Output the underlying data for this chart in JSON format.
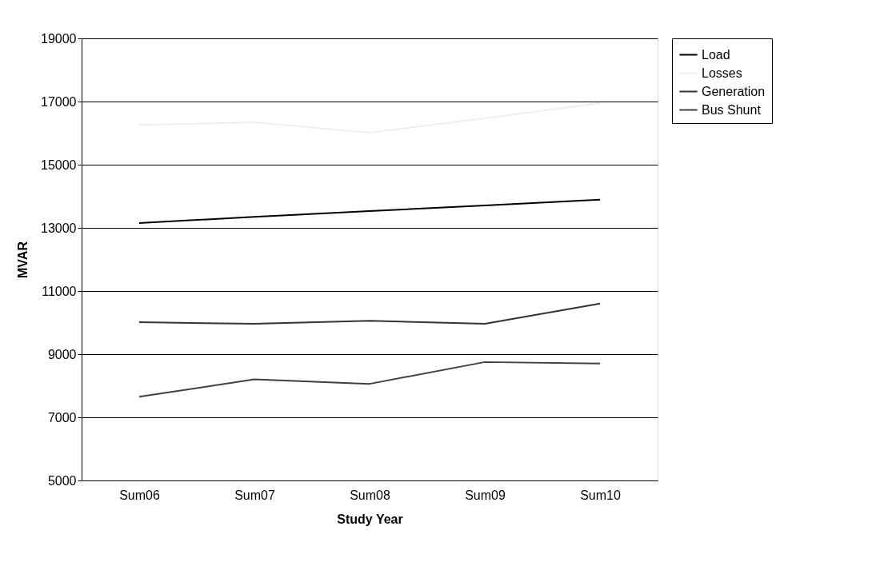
{
  "chart_data": {
    "type": "line",
    "xlabel": "Study Year",
    "ylabel": "MVAR",
    "categories": [
      "Sum06",
      "Sum07",
      "Sum08",
      "Sum09",
      "Sum10"
    ],
    "series": [
      {
        "name": "Load",
        "color": "#000000",
        "values": [
          13150,
          13350,
          13530,
          13710,
          13890
        ]
      },
      {
        "name": "Losses",
        "color": "#eeeeee",
        "values": [
          16260,
          16340,
          16010,
          16470,
          16950
        ]
      },
      {
        "name": "Generation",
        "color": "#333333",
        "values": [
          10010,
          9960,
          10060,
          9960,
          10600
        ]
      },
      {
        "name": "Bus Shunt",
        "color": "#404040",
        "values": [
          7650,
          8200,
          8060,
          8750,
          8700
        ]
      }
    ],
    "ylim": [
      5000,
      19000
    ],
    "yticks": [
      5000,
      7000,
      9000,
      11000,
      13000,
      15000,
      17000,
      19000
    ],
    "grid": "y",
    "legend": "right",
    "marker": "none",
    "line_style": "solid"
  }
}
